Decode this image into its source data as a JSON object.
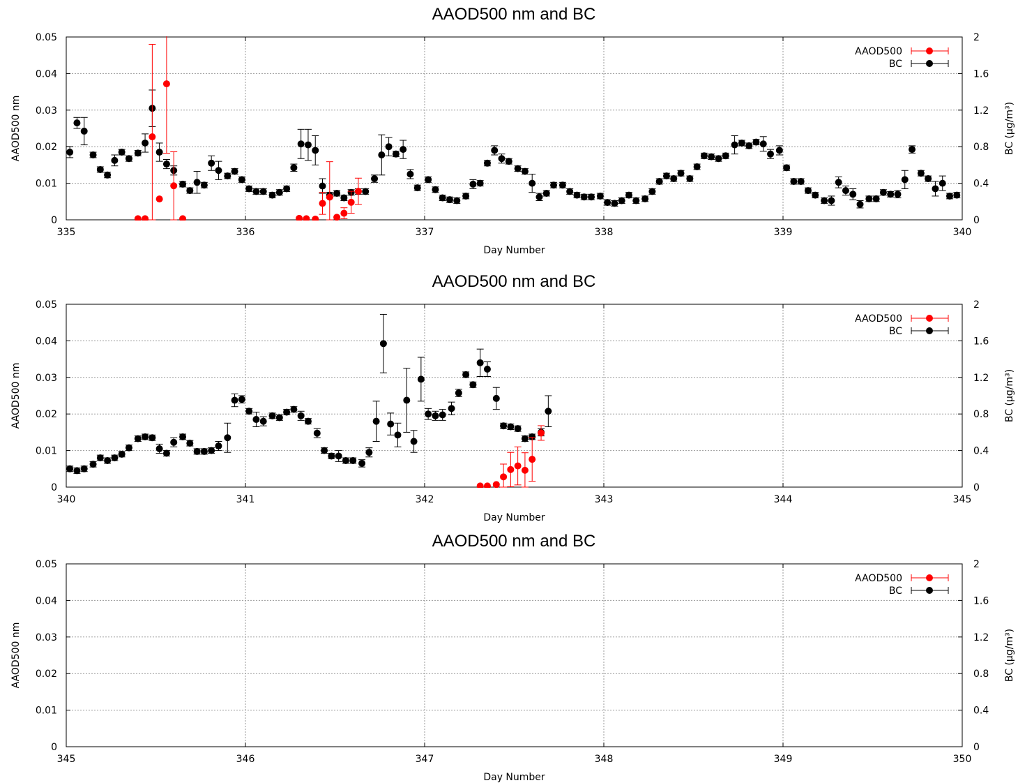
{
  "chart_data": [
    {
      "type": "scatter",
      "title": "AAOD500 nm and BC",
      "xlabel": "Day Number",
      "ylabel": "AAOD500 nm",
      "y2label": "BC (µg/m³)",
      "xlim": [
        335,
        340
      ],
      "ylim": [
        0,
        0.05
      ],
      "y2lim": [
        0,
        2
      ],
      "xticks": [
        "335",
        "336",
        "337",
        "338",
        "339",
        "340"
      ],
      "yticks": [
        "0",
        "0.01",
        "0.02",
        "0.03",
        "0.04",
        "0.05"
      ],
      "y2ticks": [
        "0",
        "0.4",
        "0.8",
        "1.2",
        "1.6",
        "2"
      ],
      "grid": true,
      "legend_position": "top-right",
      "series": [
        {
          "name": "AAOD500",
          "axis": "left",
          "color": "#ff0000",
          "x": [
            335.4,
            335.44,
            335.48,
            335.52,
            335.56,
            335.6,
            335.65,
            336.3,
            336.34,
            336.39,
            336.43,
            336.47,
            336.51,
            336.55,
            336.59,
            336.63
          ],
          "y": [
            0.0003,
            0.0003,
            0.0227,
            0.0057,
            0.0372,
            0.0093,
            0.0003,
            0.0004,
            0.0003,
            0.0002,
            0.0045,
            0.0062,
            0.0007,
            0.0018,
            0.0048,
            0.0078
          ],
          "err": [
            0,
            0,
            0.0253,
            0,
            0.019,
            0.0093,
            0,
            0,
            0,
            0,
            0.003,
            0.0097,
            0,
            0.0015,
            0.003,
            0.0036
          ]
        },
        {
          "name": "BC",
          "axis": "right",
          "color": "#000000",
          "x": [
            335.02,
            335.06,
            335.1,
            335.15,
            335.19,
            335.23,
            335.27,
            335.31,
            335.35,
            335.4,
            335.44,
            335.48,
            335.52,
            335.56,
            335.6,
            335.65,
            335.69,
            335.73,
            335.77,
            335.81,
            335.85,
            335.9,
            335.94,
            335.98,
            336.02,
            336.06,
            336.1,
            336.15,
            336.19,
            336.23,
            336.27,
            336.31,
            336.35,
            336.39,
            336.43,
            336.47,
            336.51,
            336.55,
            336.59,
            336.63,
            336.67,
            336.72,
            336.76,
            336.8,
            336.84,
            336.88,
            336.92,
            336.96,
            337.02,
            337.06,
            337.1,
            337.14,
            337.18,
            337.23,
            337.27,
            337.31,
            337.35,
            337.39,
            337.43,
            337.47,
            337.52,
            337.56,
            337.6,
            337.64,
            337.68,
            337.72,
            337.77,
            337.81,
            337.85,
            337.89,
            337.93,
            337.98,
            338.02,
            338.06,
            338.1,
            338.14,
            338.18,
            338.23,
            338.27,
            338.31,
            338.35,
            338.39,
            338.43,
            338.48,
            338.52,
            338.56,
            338.6,
            338.64,
            338.68,
            338.73,
            338.77,
            338.81,
            338.85,
            338.89,
            338.93,
            338.98,
            339.02,
            339.06,
            339.1,
            339.14,
            339.18,
            339.23,
            339.27,
            339.31,
            339.35,
            339.39,
            339.43,
            339.48,
            339.52,
            339.56,
            339.6,
            339.64,
            339.68,
            339.72,
            339.77,
            339.81,
            339.85,
            339.89,
            339.93,
            339.97
          ],
          "y": [
            0.74,
            1.06,
            0.97,
            0.71,
            0.55,
            0.49,
            0.65,
            0.74,
            0.67,
            0.73,
            0.84,
            1.22,
            0.74,
            0.61,
            0.54,
            0.39,
            0.32,
            0.41,
            0.38,
            0.62,
            0.54,
            0.48,
            0.53,
            0.44,
            0.34,
            0.31,
            0.31,
            0.27,
            0.3,
            0.34,
            0.57,
            0.83,
            0.82,
            0.76,
            0.37,
            0.27,
            0.29,
            0.24,
            0.3,
            0.31,
            0.31,
            0.45,
            0.71,
            0.8,
            0.72,
            0.77,
            0.5,
            0.35,
            0.44,
            0.33,
            0.24,
            0.22,
            0.21,
            0.26,
            0.39,
            0.4,
            0.62,
            0.76,
            0.67,
            0.64,
            0.56,
            0.53,
            0.4,
            0.25,
            0.29,
            0.38,
            0.38,
            0.31,
            0.27,
            0.25,
            0.25,
            0.26,
            0.19,
            0.18,
            0.21,
            0.27,
            0.21,
            0.23,
            0.31,
            0.42,
            0.48,
            0.45,
            0.51,
            0.45,
            0.58,
            0.7,
            0.69,
            0.67,
            0.7,
            0.82,
            0.84,
            0.81,
            0.85,
            0.83,
            0.72,
            0.76,
            0.57,
            0.42,
            0.42,
            0.32,
            0.27,
            0.21,
            0.21,
            0.41,
            0.32,
            0.28,
            0.17,
            0.23,
            0.23,
            0.3,
            0.28,
            0.28,
            0.44,
            0.77,
            0.51,
            0.45,
            0.34,
            0.4,
            0.26,
            0.27
          ],
          "err": [
            0.06,
            0.06,
            0.15,
            0.03,
            0.03,
            0.03,
            0.06,
            0.03,
            0.03,
            0.03,
            0.1,
            0.2,
            0.1,
            0.05,
            0.05,
            0.03,
            0.03,
            0.12,
            0.03,
            0.08,
            0.1,
            0.03,
            0.03,
            0.03,
            0.03,
            0.03,
            0.03,
            0.03,
            0.03,
            0.03,
            0.04,
            0.16,
            0.17,
            0.16,
            0.08,
            0.03,
            0.03,
            0.03,
            0.03,
            0.03,
            0.03,
            0.04,
            0.22,
            0.1,
            0.03,
            0.1,
            0.05,
            0.03,
            0.03,
            0.03,
            0.03,
            0.03,
            0.03,
            0.03,
            0.05,
            0.03,
            0.03,
            0.05,
            0.05,
            0.03,
            0.03,
            0.03,
            0.1,
            0.04,
            0.03,
            0.03,
            0.03,
            0.03,
            0.03,
            0.03,
            0.03,
            0.03,
            0.03,
            0.03,
            0.03,
            0.03,
            0.03,
            0.03,
            0.03,
            0.03,
            0.03,
            0.03,
            0.03,
            0.03,
            0.03,
            0.03,
            0.03,
            0.03,
            0.03,
            0.1,
            0.03,
            0.03,
            0.03,
            0.08,
            0.05,
            0.05,
            0.03,
            0.03,
            0.03,
            0.03,
            0.03,
            0.03,
            0.05,
            0.06,
            0.05,
            0.06,
            0.04,
            0.03,
            0.03,
            0.03,
            0.03,
            0.04,
            0.1,
            0.04,
            0.03,
            0.03,
            0.08,
            0.08,
            0.03,
            0.03
          ]
        }
      ]
    },
    {
      "type": "scatter",
      "title": "AAOD500 nm and BC",
      "xlabel": "Day Number",
      "ylabel": "AAOD500 nm",
      "y2label": "BC (µg/m³)",
      "xlim": [
        340,
        345
      ],
      "ylim": [
        0,
        0.05
      ],
      "y2lim": [
        0,
        2
      ],
      "xticks": [
        "340",
        "341",
        "342",
        "343",
        "344",
        "345"
      ],
      "yticks": [
        "0",
        "0.01",
        "0.02",
        "0.03",
        "0.04",
        "0.05"
      ],
      "y2ticks": [
        "0",
        "0.4",
        "0.8",
        "1.2",
        "1.6",
        "2"
      ],
      "grid": true,
      "legend_position": "top-right",
      "series": [
        {
          "name": "AAOD500",
          "axis": "left",
          "color": "#ff0000",
          "x": [
            342.31,
            342.35,
            342.4,
            342.44,
            342.48,
            342.52,
            342.56,
            342.6,
            342.65
          ],
          "y": [
            0.0003,
            0.0003,
            0.0007,
            0.0028,
            0.0048,
            0.0058,
            0.0046,
            0.0076,
            0.0148
          ],
          "err": [
            0,
            0,
            0,
            0.0035,
            0.0047,
            0.0052,
            0.0048,
            0.006,
            0.002
          ]
        },
        {
          "name": "BC",
          "axis": "right",
          "color": "#000000",
          "x": [
            340.02,
            340.06,
            340.1,
            340.15,
            340.19,
            340.23,
            340.27,
            340.31,
            340.35,
            340.4,
            340.44,
            340.48,
            340.52,
            340.56,
            340.6,
            340.65,
            340.69,
            340.73,
            340.77,
            340.81,
            340.85,
            340.9,
            340.94,
            340.98,
            341.02,
            341.06,
            341.1,
            341.15,
            341.19,
            341.23,
            341.27,
            341.31,
            341.35,
            341.4,
            341.44,
            341.48,
            341.52,
            341.56,
            341.6,
            341.65,
            341.69,
            341.73,
            341.77,
            341.81,
            341.85,
            341.9,
            341.94,
            341.98,
            342.02,
            342.06,
            342.1,
            342.15,
            342.19,
            342.23,
            342.27,
            342.31,
            342.35,
            342.4,
            342.44,
            342.48,
            342.52,
            342.56,
            342.6,
            342.65,
            342.69
          ],
          "y": [
            0.2,
            0.18,
            0.2,
            0.25,
            0.32,
            0.29,
            0.32,
            0.36,
            0.43,
            0.53,
            0.55,
            0.54,
            0.42,
            0.37,
            0.49,
            0.55,
            0.48,
            0.39,
            0.39,
            0.4,
            0.45,
            0.54,
            0.95,
            0.96,
            0.83,
            0.74,
            0.72,
            0.78,
            0.76,
            0.82,
            0.85,
            0.78,
            0.72,
            0.59,
            0.4,
            0.34,
            0.34,
            0.29,
            0.29,
            0.26,
            0.38,
            0.72,
            1.57,
            0.69,
            0.57,
            0.95,
            0.5,
            1.18,
            0.8,
            0.78,
            0.79,
            0.86,
            1.03,
            1.23,
            1.12,
            1.36,
            1.29,
            0.97,
            0.67,
            0.66,
            0.64,
            0.53,
            0.55,
            0.6,
            0.83
          ],
          "err": [
            0.03,
            0.03,
            0.03,
            0.03,
            0.03,
            0.03,
            0.03,
            0.03,
            0.03,
            0.03,
            0.03,
            0.03,
            0.05,
            0.03,
            0.05,
            0.03,
            0.03,
            0.03,
            0.03,
            0.03,
            0.05,
            0.16,
            0.07,
            0.04,
            0.03,
            0.08,
            0.05,
            0.03,
            0.03,
            0.03,
            0.03,
            0.05,
            0.03,
            0.05,
            0.03,
            0.03,
            0.06,
            0.03,
            0.03,
            0.04,
            0.05,
            0.22,
            0.32,
            0.12,
            0.13,
            0.35,
            0.12,
            0.24,
            0.06,
            0.05,
            0.06,
            0.07,
            0.04,
            0.03,
            0.03,
            0.15,
            0.08,
            0.12,
            0.03,
            0.03,
            0.03,
            0.03,
            0.03,
            0.04,
            0.17
          ]
        }
      ]
    },
    {
      "type": "scatter",
      "title": "AAOD500 nm and BC",
      "xlabel": "Day Number",
      "ylabel": "AAOD500 nm",
      "y2label": "BC (µg/m³)",
      "xlim": [
        345,
        350
      ],
      "ylim": [
        0,
        0.05
      ],
      "y2lim": [
        0,
        2
      ],
      "xticks": [
        "345",
        "346",
        "347",
        "348",
        "349",
        "350"
      ],
      "yticks": [
        "0",
        "0.01",
        "0.02",
        "0.03",
        "0.04",
        "0.05"
      ],
      "y2ticks": [
        "0",
        "0.4",
        "0.8",
        "1.2",
        "1.6",
        "2"
      ],
      "grid": true,
      "legend_position": "top-right",
      "series": [
        {
          "name": "AAOD500",
          "axis": "left",
          "color": "#ff0000",
          "x": [],
          "y": [],
          "err": []
        },
        {
          "name": "BC",
          "axis": "right",
          "color": "#000000",
          "x": [],
          "y": [],
          "err": []
        }
      ]
    }
  ]
}
